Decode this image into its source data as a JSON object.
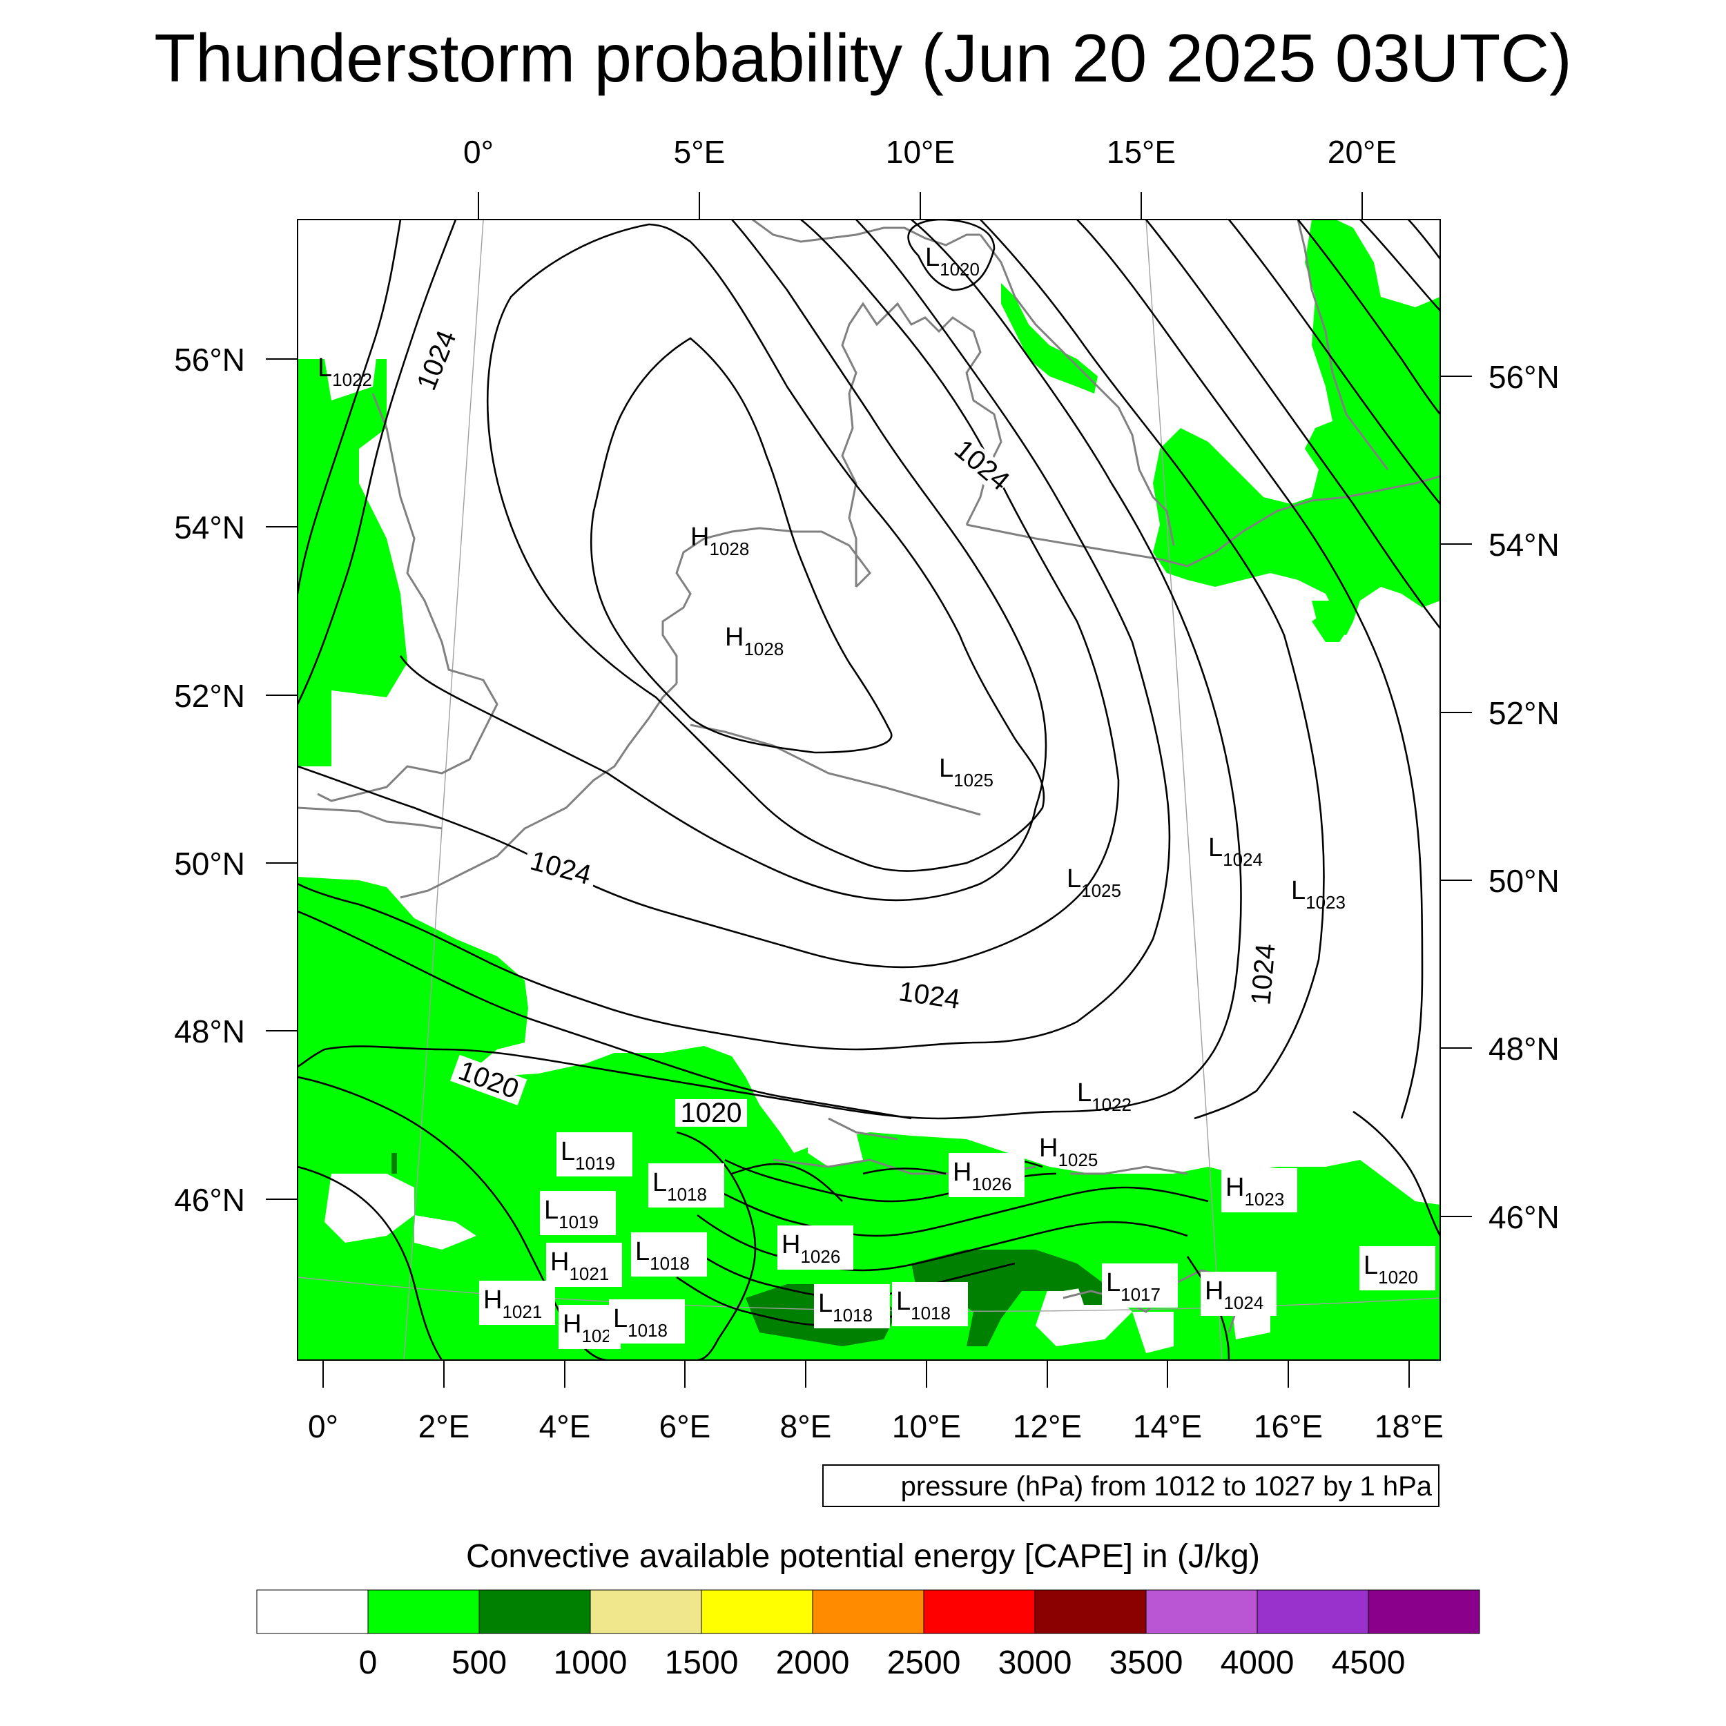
{
  "title": "Thunderstorm probability (Jun 20 2025 03UTC)",
  "top_lon_labels": [
    "0°",
    "5°E",
    "10°E",
    "15°E",
    "20°E"
  ],
  "bottom_lon_labels": [
    "0°",
    "2°E",
    "4°E",
    "6°E",
    "8°E",
    "10°E",
    "12°E",
    "14°E",
    "16°E",
    "18°E"
  ],
  "left_lat_labels": [
    "56°N",
    "54°N",
    "52°N",
    "50°N",
    "48°N",
    "46°N"
  ],
  "right_lat_labels": [
    "56°N",
    "54°N",
    "52°N",
    "50°N",
    "48°N",
    "46°N"
  ],
  "contour_info": "pressure (hPa) from 1012 to 1027 by 1 hPa",
  "contour_labels": [
    "1024",
    "1024",
    "1024",
    "1024",
    "1024",
    "1020",
    "1020"
  ],
  "pressure_centers": [
    {
      "letter": "L",
      "value": "1020"
    },
    {
      "letter": "L",
      "value": "1022"
    },
    {
      "letter": "H",
      "value": "1028"
    },
    {
      "letter": "H",
      "value": "1028"
    },
    {
      "letter": "L",
      "value": "1025"
    },
    {
      "letter": "L",
      "value": "1025"
    },
    {
      "letter": "L",
      "value": "1024"
    },
    {
      "letter": "L",
      "value": "1023"
    },
    {
      "letter": "L",
      "value": "1022"
    },
    {
      "letter": "H",
      "value": "1025"
    },
    {
      "letter": "H",
      "value": "1026"
    },
    {
      "letter": "L",
      "value": "1019"
    },
    {
      "letter": "L",
      "value": "1018"
    },
    {
      "letter": "H",
      "value": "1023"
    },
    {
      "letter": "L",
      "value": "1019"
    },
    {
      "letter": "L",
      "value": "1018"
    },
    {
      "letter": "H",
      "value": "1026"
    },
    {
      "letter": "H",
      "value": "1021"
    },
    {
      "letter": "L",
      "value": "1020"
    },
    {
      "letter": "L",
      "value": "1017"
    },
    {
      "letter": "H",
      "value": "1024"
    },
    {
      "letter": "H",
      "value": "1021"
    },
    {
      "letter": "L",
      "value": "1018"
    },
    {
      "letter": "L",
      "value": "1018"
    },
    {
      "letter": "H",
      "value": "102"
    },
    {
      "letter": "L",
      "value": "1018"
    }
  ],
  "colorbar": {
    "title": "Convective available potential energy [CAPE] in (J/kg)",
    "colors": [
      "#ffffff",
      "#00ff00",
      "#008000",
      "#f0e68c",
      "#ffff00",
      "#ff8c00",
      "#ff0000",
      "#8b0000",
      "#ba55d3",
      "#9932cc",
      "#8b008b"
    ],
    "labels": [
      "0",
      "500",
      "1000",
      "1500",
      "2000",
      "2500",
      "3000",
      "3500",
      "4000",
      "4500"
    ]
  },
  "colors": {
    "cape_light": "#00ff00",
    "cape_dark": "#008000",
    "coastline": "#808080",
    "contour": "#000000"
  }
}
